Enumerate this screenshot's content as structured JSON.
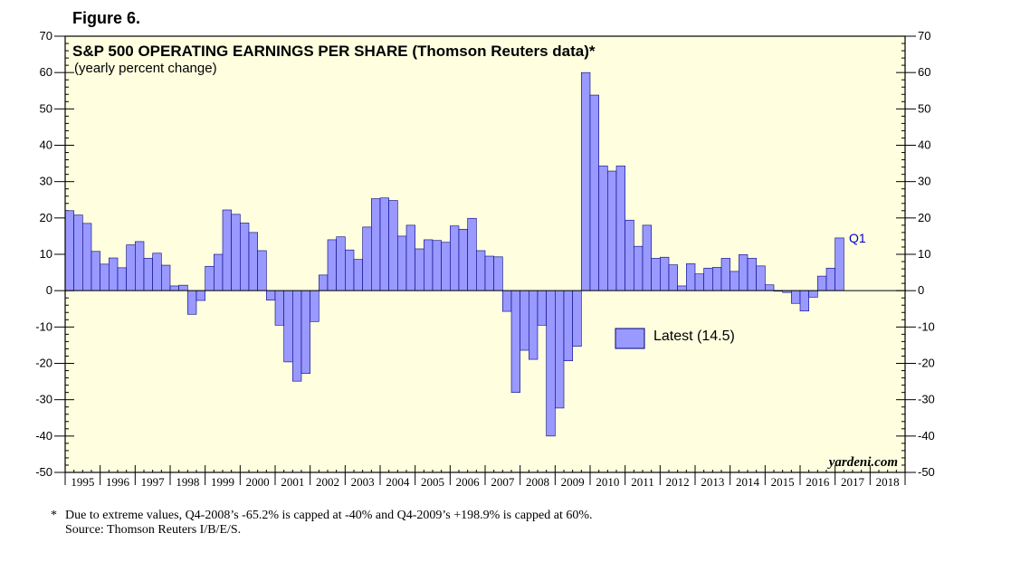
{
  "figure_label": "Figure 6.",
  "chart_data": {
    "type": "bar",
    "title": "S&P 500 OPERATING EARNINGS PER SHARE (Thomson Reuters data)*",
    "subtitle": "(yearly percent change)",
    "xlabel": "",
    "ylabel": "",
    "ylim": [
      -50,
      70
    ],
    "y_ticks": [
      -50,
      -40,
      -30,
      -20,
      -10,
      0,
      10,
      20,
      30,
      40,
      50,
      60,
      70
    ],
    "x_categories": [
      "1995",
      "1996",
      "1997",
      "1998",
      "1999",
      "2000",
      "2001",
      "2002",
      "2003",
      "2004",
      "2005",
      "2006",
      "2007",
      "2008",
      "2009",
      "2010",
      "2011",
      "2012",
      "2013",
      "2014",
      "2015",
      "2016",
      "2017",
      "2018"
    ],
    "grid": false,
    "background": "#ffffe0",
    "bar_color": "#9999ff",
    "bar_edge_color": "#000080",
    "legend": {
      "label": "Latest (14.5)",
      "position": "center-right"
    },
    "annotations": [
      {
        "text": "Q1",
        "near_quarter": "2017Q1"
      }
    ],
    "source_mark": "yardeni.com",
    "series": [
      {
        "name": "S&P 500 operating EPS yearly % change",
        "start": "1995Q1",
        "values": [
          22.0,
          20.8,
          18.5,
          10.8,
          7.3,
          9.0,
          6.3,
          12.6,
          13.5,
          8.9,
          10.3,
          7.0,
          1.3,
          1.5,
          -6.5,
          -2.7,
          6.7,
          10.0,
          22.2,
          21.0,
          18.6,
          16.0,
          11.0,
          -2.6,
          -9.5,
          -19.6,
          -24.9,
          -22.8,
          -8.5,
          4.3,
          14.0,
          14.8,
          11.2,
          8.6,
          17.5,
          25.3,
          25.5,
          24.8,
          15.0,
          18.0,
          11.5,
          14.0,
          13.8,
          13.3,
          17.8,
          16.9,
          19.9,
          11.0,
          9.5,
          9.3,
          -5.7,
          -28.0,
          -16.4,
          -18.9,
          -9.5,
          -40.0,
          -32.3,
          -19.3,
          -15.3,
          60.0,
          53.8,
          34.3,
          32.9,
          34.3,
          19.4,
          12.2,
          18.0,
          8.9,
          9.2,
          7.1,
          1.3,
          7.4,
          4.6,
          6.2,
          6.4,
          8.9,
          5.3,
          9.9,
          8.9,
          6.8,
          1.6,
          0.0,
          -0.5,
          -3.5,
          -5.6,
          -1.8,
          4.0,
          6.2,
          14.5
        ]
      }
    ]
  },
  "footnote": {
    "star": "*",
    "line1": "Due to extreme values, Q4-2008’s -65.2% is capped at -40% and Q4-2009’s +198.9% is capped at 60%.",
    "line2": "Source: Thomson Reuters I/B/E/S."
  }
}
